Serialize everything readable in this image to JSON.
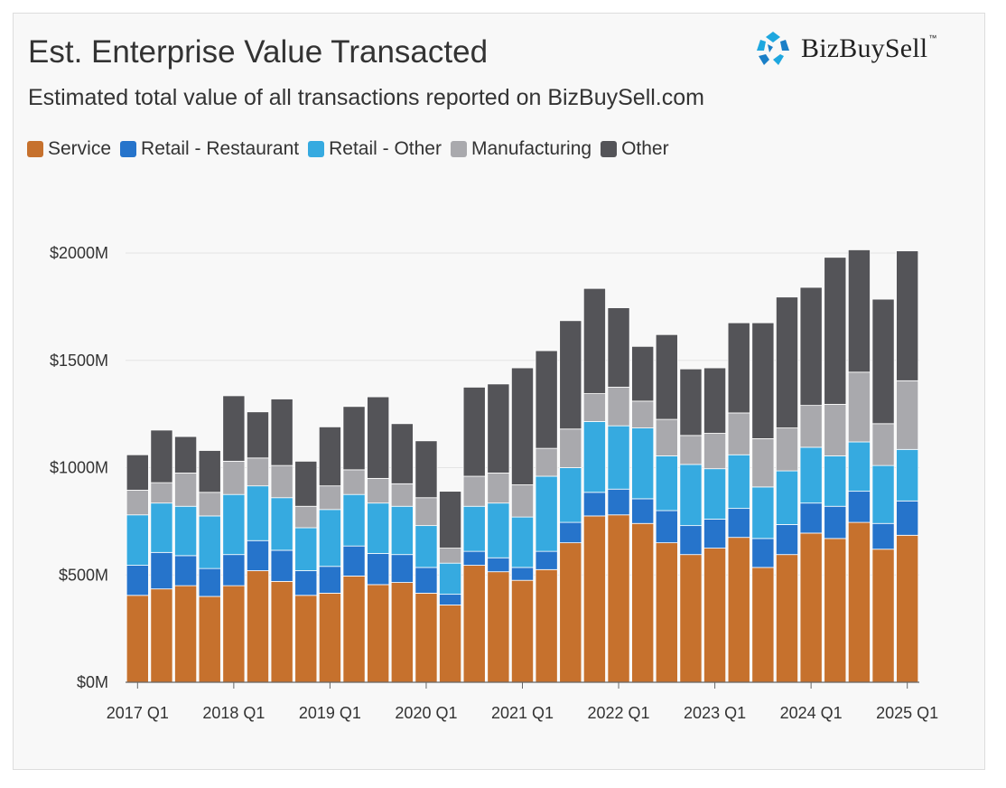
{
  "title": "Est. Enterprise Value Transacted",
  "subtitle": "Estimated total value of all transactions reported on BizBuySell.com",
  "logo": {
    "text": "BizBuySell",
    "trademark": "™",
    "icon": "bizbuysell-logo-icon"
  },
  "legend": [
    {
      "label": "Service",
      "color": "#c6712d"
    },
    {
      "label": "Retail - Restaurant",
      "color": "#2674cb"
    },
    {
      "label": "Retail - Other",
      "color": "#36aae0"
    },
    {
      "label": "Manufacturing",
      "color": "#a9a9ad"
    },
    {
      "label": "Other",
      "color": "#545458"
    }
  ],
  "chart_data": {
    "type": "bar",
    "stacked": true,
    "title": "Est. Enterprise Value Transacted",
    "subtitle": "Estimated total value of all transactions reported on BizBuySell.com",
    "xlabel": "",
    "ylabel": "",
    "ylim": [
      0,
      2100
    ],
    "y_ticks": [
      0,
      500,
      1000,
      1500,
      2000
    ],
    "y_tick_labels": [
      "$0M",
      "$500M",
      "$1000M",
      "$1500M",
      "$2000M"
    ],
    "grid": true,
    "legend_position": "top-left",
    "categories": [
      "2017 Q1",
      "2017 Q2",
      "2017 Q3",
      "2017 Q4",
      "2018 Q1",
      "2018 Q2",
      "2018 Q3",
      "2018 Q4",
      "2019 Q1",
      "2019 Q2",
      "2019 Q3",
      "2019 Q4",
      "2020 Q1",
      "2020 Q2",
      "2020 Q3",
      "2020 Q4",
      "2021 Q1",
      "2021 Q2",
      "2021 Q3",
      "2021 Q4",
      "2022 Q1",
      "2022 Q2",
      "2022 Q3",
      "2022 Q4",
      "2023 Q1",
      "2023 Q2",
      "2023 Q3",
      "2023 Q4",
      "2024 Q1",
      "2024 Q2",
      "2024 Q3",
      "2024 Q4",
      "2025 Q1"
    ],
    "x_tick_labels": [
      {
        "index": 0,
        "label": "2017 Q1"
      },
      {
        "index": 4,
        "label": "2018 Q1"
      },
      {
        "index": 8,
        "label": "2019 Q1"
      },
      {
        "index": 12,
        "label": "2020 Q1"
      },
      {
        "index": 16,
        "label": "2021 Q1"
      },
      {
        "index": 20,
        "label": "2022 Q1"
      },
      {
        "index": 24,
        "label": "2023 Q1"
      },
      {
        "index": 28,
        "label": "2024 Q1"
      },
      {
        "index": 32,
        "label": "2025 Q1"
      }
    ],
    "series": [
      {
        "name": "Service",
        "color": "#c6712d",
        "values": [
          405,
          435,
          450,
          400,
          450,
          520,
          470,
          405,
          415,
          495,
          455,
          465,
          415,
          360,
          545,
          515,
          475,
          525,
          650,
          775,
          780,
          740,
          650,
          595,
          625,
          675,
          535,
          595,
          695,
          670,
          745,
          620,
          685
        ]
      },
      {
        "name": "Retail - Restaurant",
        "color": "#2674cb",
        "values": [
          140,
          170,
          140,
          130,
          145,
          140,
          145,
          115,
          125,
          140,
          145,
          130,
          120,
          50,
          65,
          65,
          60,
          85,
          95,
          110,
          120,
          115,
          150,
          135,
          135,
          135,
          135,
          140,
          140,
          150,
          145,
          120,
          160
        ]
      },
      {
        "name": "Retail - Other",
        "color": "#36aae0",
        "values": [
          235,
          230,
          230,
          245,
          280,
          255,
          245,
          200,
          265,
          240,
          235,
          225,
          195,
          145,
          210,
          255,
          235,
          350,
          255,
          330,
          295,
          330,
          255,
          285,
          235,
          250,
          240,
          250,
          260,
          235,
          230,
          270,
          240
        ]
      },
      {
        "name": "Manufacturing",
        "color": "#a9a9ad",
        "values": [
          115,
          95,
          155,
          110,
          155,
          130,
          150,
          100,
          110,
          115,
          115,
          105,
          130,
          70,
          140,
          140,
          150,
          130,
          180,
          130,
          180,
          125,
          170,
          135,
          165,
          195,
          225,
          200,
          195,
          240,
          325,
          195,
          320
        ]
      },
      {
        "name": "Other",
        "color": "#545458",
        "values": [
          165,
          245,
          170,
          195,
          305,
          215,
          310,
          210,
          275,
          295,
          380,
          280,
          265,
          265,
          415,
          415,
          545,
          455,
          505,
          490,
          370,
          255,
          395,
          310,
          305,
          420,
          540,
          610,
          550,
          685,
          570,
          580,
          605
        ]
      }
    ]
  }
}
